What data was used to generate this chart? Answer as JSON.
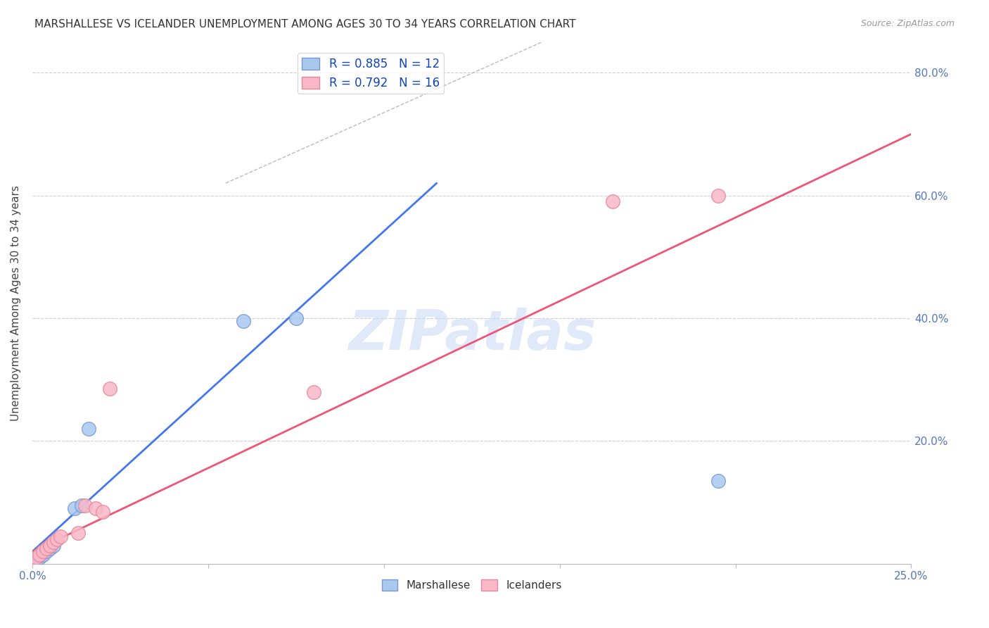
{
  "title": "MARSHALLESE VS ICELANDER UNEMPLOYMENT AMONG AGES 30 TO 34 YEARS CORRELATION CHART",
  "source": "Source: ZipAtlas.com",
  "xlim": [
    0.0,
    0.25
  ],
  "ylim": [
    0.0,
    0.85
  ],
  "marshallese_x": [
    0.001,
    0.002,
    0.003,
    0.004,
    0.005,
    0.006,
    0.012,
    0.014,
    0.016,
    0.06,
    0.075,
    0.195
  ],
  "marshallese_y": [
    0.005,
    0.01,
    0.015,
    0.02,
    0.025,
    0.03,
    0.09,
    0.095,
    0.22,
    0.395,
    0.4,
    0.135
  ],
  "icelanders_x": [
    0.001,
    0.002,
    0.003,
    0.004,
    0.005,
    0.006,
    0.007,
    0.008,
    0.013,
    0.015,
    0.018,
    0.02,
    0.022,
    0.08,
    0.165,
    0.195
  ],
  "icelanders_y": [
    0.01,
    0.015,
    0.02,
    0.025,
    0.03,
    0.035,
    0.04,
    0.045,
    0.05,
    0.095,
    0.09,
    0.085,
    0.285,
    0.28,
    0.59,
    0.6
  ],
  "marshallese_color": "#A8C8F0",
  "marshallese_edge": "#7799CC",
  "icelanders_color": "#F8B8C8",
  "icelanders_edge": "#E88898",
  "line_marshallese": "#4477EE",
  "line_icelanders": "#EE5577",
  "dash_line_color": "#AAAAAA",
  "R_marshallese": 0.885,
  "N_marshallese": 12,
  "R_icelanders": 0.792,
  "N_icelanders": 16,
  "watermark": "ZIPatlas",
  "ylabel": "Unemployment Among Ages 30 to 34 years",
  "ylabel_ticks": [
    0.0,
    0.2,
    0.4,
    0.6,
    0.8
  ],
  "ylabel_labels": [
    "",
    "20.0%",
    "40.0%",
    "60.0%",
    "80.0%"
  ],
  "xtick_positions": [
    0.0,
    0.05,
    0.1,
    0.15,
    0.2,
    0.25
  ],
  "blue_line_x": [
    0.0,
    0.115
  ],
  "blue_line_y": [
    0.02,
    0.62
  ],
  "pink_line_x": [
    0.0,
    0.25
  ],
  "pink_line_y": [
    0.02,
    0.7
  ],
  "dash_line_x": [
    0.055,
    0.145
  ],
  "dash_line_y": [
    0.62,
    0.85
  ]
}
